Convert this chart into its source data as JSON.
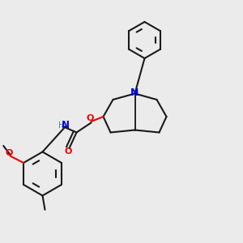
{
  "bg_color": "#ebebeb",
  "bond_color": "#1a1a1a",
  "N_color": "#0000ee",
  "O_color": "#ee0000",
  "H_color": "#4a8888",
  "line_width": 1.5,
  "figsize": [
    3.0,
    3.0
  ],
  "dpi": 100,
  "xlim": [
    0,
    1
  ],
  "ylim": [
    0,
    1
  ]
}
